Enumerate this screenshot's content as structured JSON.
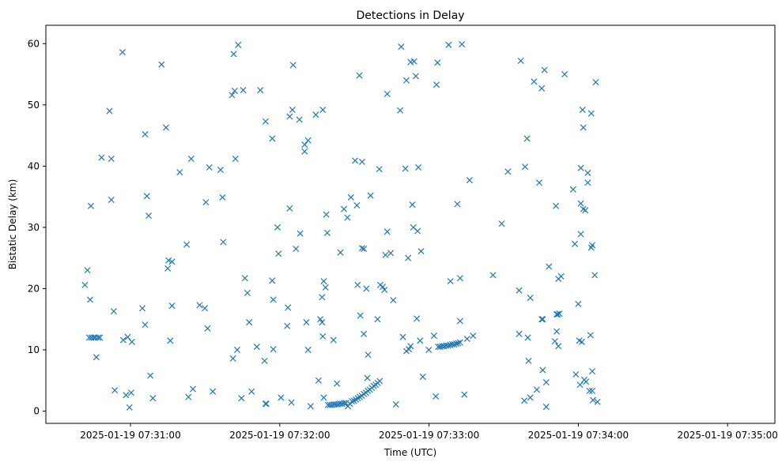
{
  "chart_data": {
    "type": "scatter",
    "title": "Detections in Delay",
    "xlabel": "Time (UTC)",
    "ylabel": "Bistatic Delay (km)",
    "x_unit": "time",
    "xlim": [
      "07:30:26",
      "07:35:19"
    ],
    "ylim": [
      -2,
      63
    ],
    "x_ticks": [
      {
        "t": "07:31:00",
        "label": "2025-01-19 07:31:00"
      },
      {
        "t": "07:32:00",
        "label": "2025-01-19 07:32:00"
      },
      {
        "t": "07:33:00",
        "label": "2025-01-19 07:33:00"
      },
      {
        "t": "07:34:00",
        "label": "2025-01-19 07:34:00"
      },
      {
        "t": "07:35:00",
        "label": "2025-01-19 07:35:00"
      }
    ],
    "y_ticks": [
      0,
      10,
      20,
      30,
      40,
      50,
      60
    ],
    "grid": false,
    "marker": "x",
    "color": "#1f77b4",
    "points": [
      [
        "07:30:41.7",
        20.6
      ],
      [
        "07:30:42.7",
        23.0
      ],
      [
        "07:30:43.8",
        18.2
      ],
      [
        "07:30:44.1",
        33.5
      ],
      [
        "07:30:43.4",
        12.0
      ],
      [
        "07:30:44.3",
        12.0
      ],
      [
        "07:30:45.2",
        12.0
      ],
      [
        "07:30:45.9",
        12.0
      ],
      [
        "07:30:46.3",
        8.8
      ],
      [
        "07:30:47.0",
        12.0
      ],
      [
        "07:30:47.7",
        12.0
      ],
      [
        "07:30:48.4",
        41.4
      ],
      [
        "07:30:51.6",
        49.0
      ],
      [
        "07:30:52.3",
        41.2
      ],
      [
        "07:30:52.3",
        34.5
      ],
      [
        "07:30:53.3",
        16.3
      ],
      [
        "07:30:53.7",
        3.4
      ],
      [
        "07:30:58.2",
        2.6
      ],
      [
        "07:30:56.8",
        58.6
      ],
      [
        "07:30:57.1",
        11.6
      ],
      [
        "07:30:58.9",
        12.1
      ],
      [
        "07:30:59.6",
        0.6
      ],
      [
        "07:31:00.6",
        11.3
      ],
      [
        "07:31:00.3",
        3.0
      ],
      [
        "07:31:04.8",
        16.8
      ],
      [
        "07:31:05.9",
        45.2
      ],
      [
        "07:31:06.6",
        35.1
      ],
      [
        "07:31:05.9",
        14.1
      ],
      [
        "07:31:07.3",
        31.9
      ],
      [
        "07:31:08.0",
        5.8
      ],
      [
        "07:31:09.0",
        2.1
      ],
      [
        "07:31:12.5",
        56.6
      ],
      [
        "07:31:14.3",
        46.3
      ],
      [
        "07:31:15.0",
        23.3
      ],
      [
        "07:31:15.3",
        24.6
      ],
      [
        "07:31:16.7",
        24.4
      ],
      [
        "07:31:16.7",
        17.2
      ],
      [
        "07:31:16.0",
        11.5
      ],
      [
        "07:31:19.8",
        39.0
      ],
      [
        "07:31:22.6",
        27.2
      ],
      [
        "07:31:23.3",
        2.3
      ],
      [
        "07:31:24.4",
        41.2
      ],
      [
        "07:31:25.1",
        3.6
      ],
      [
        "07:31:27.8",
        17.3
      ],
      [
        "07:31:29.9",
        16.8
      ],
      [
        "07:31:30.3",
        34.1
      ],
      [
        "07:31:31.0",
        13.5
      ],
      [
        "07:31:31.7",
        39.8
      ],
      [
        "07:31:33.1",
        3.2
      ],
      [
        "07:31:36.2",
        39.4
      ],
      [
        "07:31:37.0",
        34.9
      ],
      [
        "07:31:37.3",
        27.6
      ],
      [
        "07:31:40.8",
        51.6
      ],
      [
        "07:31:41.2",
        8.6
      ],
      [
        "07:31:41.5",
        58.3
      ],
      [
        "07:31:41.9",
        52.3
      ],
      [
        "07:31:42.2",
        41.2
      ],
      [
        "07:31:43.3",
        59.8
      ],
      [
        "07:31:42.9",
        10.0
      ],
      [
        "07:31:44.6",
        2.1
      ],
      [
        "07:31:45.3",
        52.4
      ],
      [
        "07:31:46.0",
        21.7
      ],
      [
        "07:31:47.0",
        19.3
      ],
      [
        "07:31:47.7",
        14.5
      ],
      [
        "07:31:48.7",
        3.2
      ],
      [
        "07:31:50.8",
        10.5
      ],
      [
        "07:31:52.2",
        52.4
      ],
      [
        "07:31:53.9",
        8.2
      ],
      [
        "07:31:54.3",
        47.3
      ],
      [
        "07:31:54.3",
        1.2
      ],
      [
        "07:31:54.6",
        1.2
      ],
      [
        "07:31:57.0",
        44.5
      ],
      [
        "07:31:57.0",
        21.3
      ],
      [
        "07:31:57.4",
        18.2
      ],
      [
        "07:31:57.4",
        10.1
      ],
      [
        "07:31:59.1",
        30.0
      ],
      [
        "07:31:59.5",
        25.7
      ],
      [
        "07:32:00.5",
        2.2
      ],
      [
        "07:32:03.0",
        13.9
      ],
      [
        "07:32:03.3",
        16.9
      ],
      [
        "07:32:04.0",
        33.1
      ],
      [
        "07:32:04.0",
        48.1
      ],
      [
        "07:32:04.7",
        1.4
      ],
      [
        "07:32:05.1",
        49.2
      ],
      [
        "07:32:05.4",
        56.5
      ],
      [
        "07:32:06.5",
        26.5
      ],
      [
        "07:32:07.9",
        47.6
      ],
      [
        "07:32:08.2",
        29.0
      ],
      [
        "07:32:10.0",
        42.4
      ],
      [
        "07:32:10.0",
        43.5
      ],
      [
        "07:32:10.7",
        14.5
      ],
      [
        "07:32:11.4",
        44.2
      ],
      [
        "07:32:11.4",
        10.0
      ],
      [
        "07:32:12.4",
        0.8
      ],
      [
        "07:32:14.5",
        48.4
      ],
      [
        "07:32:15.6",
        5.0
      ],
      [
        "07:32:16.3",
        15.0
      ],
      [
        "07:32:17.0",
        14.5
      ],
      [
        "07:32:17.0",
        18.6
      ],
      [
        "07:32:17.3",
        12.2
      ],
      [
        "07:32:17.3",
        49.2
      ],
      [
        "07:32:17.7",
        21.2
      ],
      [
        "07:32:18.4",
        20.2
      ],
      [
        "07:32:18.7",
        32.1
      ],
      [
        "07:32:19.1",
        29.1
      ],
      [
        "07:32:17.7",
        2.2
      ],
      [
        "07:32:19.4",
        1.0
      ],
      [
        "07:32:20.2",
        1.0
      ],
      [
        "07:32:21.0",
        1.0
      ],
      [
        "07:32:21.8",
        1.1
      ],
      [
        "07:32:22.6",
        1.1
      ],
      [
        "07:32:23.4",
        1.1
      ],
      [
        "07:32:24.2",
        1.2
      ],
      [
        "07:32:25.0",
        1.2
      ],
      [
        "07:32:25.8",
        1.3
      ],
      [
        "07:32:26.6",
        1.3
      ],
      [
        "07:32:27.4",
        0.8
      ],
      [
        "07:32:28.2",
        1.2
      ],
      [
        "07:32:29.0",
        1.6
      ],
      [
        "07:32:29.8",
        1.7
      ],
      [
        "07:32:30.6",
        1.9
      ],
      [
        "07:32:31.4",
        2.1
      ],
      [
        "07:32:32.2",
        2.3
      ],
      [
        "07:32:33.0",
        2.5
      ],
      [
        "07:32:33.8",
        2.8
      ],
      [
        "07:32:34.6",
        3.0
      ],
      [
        "07:32:35.4",
        3.3
      ],
      [
        "07:32:36.2",
        3.5
      ],
      [
        "07:32:37.0",
        3.8
      ],
      [
        "07:32:37.8",
        4.1
      ],
      [
        "07:32:38.6",
        4.3
      ],
      [
        "07:32:39.4",
        4.6
      ],
      [
        "07:32:40.2",
        4.9
      ],
      [
        "07:32:21.6",
        11.6
      ],
      [
        "07:32:23.0",
        4.5
      ],
      [
        "07:32:24.4",
        25.9
      ],
      [
        "07:32:25.8",
        33.0
      ],
      [
        "07:32:27.2",
        31.6
      ],
      [
        "07:32:28.6",
        34.9
      ],
      [
        "07:32:30.3",
        40.9
      ],
      [
        "07:32:31.0",
        33.6
      ],
      [
        "07:32:31.3",
        20.6
      ],
      [
        "07:32:32.0",
        54.8
      ],
      [
        "07:32:32.4",
        15.6
      ],
      [
        "07:32:33.1",
        26.6
      ],
      [
        "07:32:33.1",
        40.7
      ],
      [
        "07:32:33.8",
        12.6
      ],
      [
        "07:32:33.8",
        26.5
      ],
      [
        "07:32:34.8",
        20.0
      ],
      [
        "07:32:35.5",
        9.2
      ],
      [
        "07:32:35.2",
        5.4
      ],
      [
        "07:32:36.5",
        35.2
      ],
      [
        "07:32:39.3",
        15.0
      ],
      [
        "07:32:40.0",
        39.5
      ],
      [
        "07:32:40.4",
        20.6
      ],
      [
        "07:32:41.4",
        20.3
      ],
      [
        "07:32:42.1",
        19.8
      ],
      [
        "07:32:42.5",
        25.5
      ],
      [
        "07:32:43.2",
        51.8
      ],
      [
        "07:32:43.2",
        29.3
      ],
      [
        "07:32:44.6",
        25.8
      ],
      [
        "07:32:45.6",
        18.1
      ],
      [
        "07:32:46.7",
        1.1
      ],
      [
        "07:32:48.4",
        49.1
      ],
      [
        "07:32:48.8",
        59.5
      ],
      [
        "07:32:49.5",
        12.1
      ],
      [
        "07:32:50.5",
        39.6
      ],
      [
        "07:32:50.9",
        54.0
      ],
      [
        "07:32:50.9",
        9.8
      ],
      [
        "07:32:51.6",
        25.0
      ],
      [
        "07:32:51.9",
        10.1
      ],
      [
        "07:32:52.6",
        10.6
      ],
      [
        "07:32:52.6",
        57.0
      ],
      [
        "07:32:53.3",
        33.7
      ],
      [
        "07:32:53.7",
        30.0
      ],
      [
        "07:32:54.0",
        57.1
      ],
      [
        "07:32:54.7",
        54.7
      ],
      [
        "07:32:55.1",
        15.1
      ],
      [
        "07:32:55.4",
        29.4
      ],
      [
        "07:32:55.7",
        39.8
      ],
      [
        "07:32:56.4",
        11.5
      ],
      [
        "07:32:56.8",
        26.1
      ],
      [
        "07:32:57.5",
        5.6
      ],
      [
        "07:32:59.9",
        10.0
      ],
      [
        "07:33:02.0",
        12.3
      ],
      [
        "07:33:03.0",
        53.3
      ],
      [
        "07:33:03.4",
        56.9
      ],
      [
        "07:33:02.7",
        2.4
      ],
      [
        "07:33:03.7",
        10.5
      ],
      [
        "07:33:04.5",
        10.5
      ],
      [
        "07:33:05.3",
        10.6
      ],
      [
        "07:33:06.1",
        10.6
      ],
      [
        "07:33:06.9",
        10.7
      ],
      [
        "07:33:07.7",
        10.7
      ],
      [
        "07:33:08.5",
        10.8
      ],
      [
        "07:33:09.3",
        10.9
      ],
      [
        "07:33:10.1",
        10.9
      ],
      [
        "07:33:10.9",
        11.0
      ],
      [
        "07:33:11.7",
        11.1
      ],
      [
        "07:33:12.5",
        11.2
      ],
      [
        "07:33:07.9",
        59.8
      ],
      [
        "07:33:08.6",
        21.2
      ],
      [
        "07:33:11.4",
        33.8
      ],
      [
        "07:33:12.5",
        14.7
      ],
      [
        "07:33:12.5",
        21.7
      ],
      [
        "07:33:13.2",
        59.9
      ],
      [
        "07:33:14.2",
        2.7
      ],
      [
        "07:33:15.3",
        11.8
      ],
      [
        "07:33:16.3",
        37.7
      ],
      [
        "07:33:17.7",
        12.3
      ],
      [
        "07:33:25.7",
        22.2
      ],
      [
        "07:33:29.2",
        30.6
      ],
      [
        "07:33:31.7",
        39.1
      ],
      [
        "07:33:36.2",
        19.7
      ],
      [
        "07:33:36.2",
        12.6
      ],
      [
        "07:33:36.9",
        57.2
      ],
      [
        "07:33:38.3",
        1.7
      ],
      [
        "07:33:38.6",
        39.9
      ],
      [
        "07:33:39.4",
        44.5
      ],
      [
        "07:33:39.7",
        12.0
      ],
      [
        "07:33:40.0",
        8.2
      ],
      [
        "07:33:40.7",
        18.5
      ],
      [
        "07:33:40.7",
        2.2
      ],
      [
        "07:33:42.2",
        53.8
      ],
      [
        "07:33:43.3",
        3.5
      ],
      [
        "07:33:44.3",
        37.3
      ],
      [
        "07:33:45.3",
        52.7
      ],
      [
        "07:33:45.3",
        15.0
      ],
      [
        "07:33:45.7",
        15.0
      ],
      [
        "07:33:45.7",
        6.7
      ],
      [
        "07:33:46.4",
        55.7
      ],
      [
        "07:33:47.1",
        4.7
      ],
      [
        "07:33:47.1",
        0.7
      ],
      [
        "07:33:48.2",
        23.6
      ],
      [
        "07:33:50.6",
        11.4
      ],
      [
        "07:33:51.0",
        33.5
      ],
      [
        "07:33:51.3",
        15.8
      ],
      [
        "07:33:51.3",
        13.0
      ],
      [
        "07:33:51.7",
        15.8
      ],
      [
        "07:33:52.0",
        10.6
      ],
      [
        "07:33:52.0",
        21.6
      ],
      [
        "07:33:52.4",
        15.9
      ],
      [
        "07:33:53.1",
        22.0
      ],
      [
        "07:33:54.5",
        55.0
      ],
      [
        "07:33:57.9",
        36.2
      ],
      [
        "07:33:58.6",
        27.3
      ],
      [
        "07:33:59.0",
        6.0
      ],
      [
        "07:34:00.0",
        17.5
      ],
      [
        "07:34:00.4",
        11.5
      ],
      [
        "07:34:00.7",
        4.3
      ],
      [
        "07:34:01.0",
        39.7
      ],
      [
        "07:34:01.0",
        33.9
      ],
      [
        "07:34:01.0",
        28.9
      ],
      [
        "07:34:01.4",
        11.3
      ],
      [
        "07:34:01.7",
        49.2
      ],
      [
        "07:34:02.0",
        46.3
      ],
      [
        "07:34:02.0",
        33.0
      ],
      [
        "07:34:02.4",
        5.1
      ],
      [
        "07:34:02.8",
        32.8
      ],
      [
        "07:34:03.1",
        4.8
      ],
      [
        "07:34:03.8",
        38.9
      ],
      [
        "07:34:03.8",
        37.3
      ],
      [
        "07:34:04.5",
        3.3
      ],
      [
        "07:34:04.9",
        12.4
      ],
      [
        "07:34:05.2",
        26.7
      ],
      [
        "07:34:05.6",
        27.1
      ],
      [
        "07:34:05.2",
        48.6
      ],
      [
        "07:34:05.6",
        6.5
      ],
      [
        "07:34:05.6",
        3.3
      ],
      [
        "07:34:05.9",
        1.8
      ],
      [
        "07:34:06.6",
        22.2
      ],
      [
        "07:34:07.0",
        53.7
      ],
      [
        "07:34:07.7",
        1.5
      ]
    ]
  }
}
